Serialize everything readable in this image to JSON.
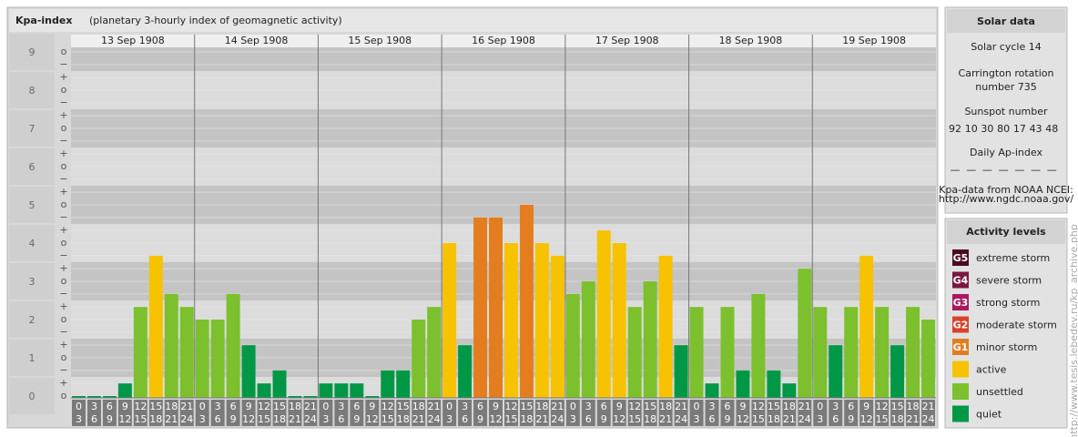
{
  "chart_data": {
    "type": "bar",
    "title": "Kpa-index",
    "subtitle": "(planetary 3-hourly index of geomagnetic activity)",
    "categories": [
      "13 Sep 1908",
      "14 Sep 1908",
      "15 Sep 1908",
      "16 Sep 1908",
      "17 Sep 1908",
      "18 Sep 1908",
      "19 Sep 1908"
    ],
    "hours_start": [
      "0",
      "3",
      "6",
      "9",
      "12",
      "15",
      "18",
      "21"
    ],
    "hours_end": [
      "3",
      "6",
      "9",
      "12",
      "15",
      "18",
      "21",
      "24"
    ],
    "values": [
      [
        0,
        0,
        0,
        0.33,
        2.33,
        3.67,
        2.67,
        2.33
      ],
      [
        2,
        2,
        2.67,
        1.33,
        0.33,
        0.67,
        0,
        0
      ],
      [
        0.33,
        0.33,
        0.33,
        0,
        0.67,
        0.67,
        2,
        2.33
      ],
      [
        4,
        1.33,
        4.67,
        4.67,
        4,
        5,
        4,
        3.67
      ],
      [
        2.67,
        3,
        4.33,
        4,
        2.33,
        3,
        3.67,
        1.33
      ],
      [
        2.33,
        0.33,
        2.33,
        0.67,
        2.67,
        0.67,
        0.33,
        3.33
      ],
      [
        2.33,
        1.33,
        2.33,
        3.67,
        2.33,
        1.33,
        2.33,
        2
      ]
    ],
    "levels": [
      [
        7,
        7,
        7,
        7,
        6,
        5,
        6,
        6
      ],
      [
        6,
        6,
        6,
        7,
        7,
        7,
        7,
        7
      ],
      [
        7,
        7,
        7,
        7,
        7,
        7,
        6,
        6
      ],
      [
        5,
        7,
        4,
        4,
        5,
        4,
        5,
        5
      ],
      [
        6,
        6,
        5,
        5,
        6,
        6,
        5,
        7
      ],
      [
        6,
        7,
        6,
        7,
        6,
        7,
        7,
        6
      ],
      [
        6,
        7,
        6,
        5,
        6,
        7,
        6,
        6
      ]
    ],
    "ylim": [
      0,
      9.12
    ],
    "yticks": [
      0,
      1,
      2,
      3,
      4,
      5,
      6,
      7,
      8,
      9
    ],
    "minor_ticks": [
      {
        "value": 9,
        "label": "o"
      },
      {
        "value": 8.67,
        "label": "−"
      },
      {
        "value": 8.33,
        "label": "+"
      },
      {
        "value": 8,
        "label": "o"
      },
      {
        "value": 7.67,
        "label": "−"
      },
      {
        "value": 7.33,
        "label": "+"
      },
      {
        "value": 7,
        "label": "o"
      },
      {
        "value": 6.67,
        "label": "−"
      },
      {
        "value": 6.33,
        "label": "+"
      },
      {
        "value": 6,
        "label": "o"
      },
      {
        "value": 5.67,
        "label": "−"
      },
      {
        "value": 5.33,
        "label": "+"
      },
      {
        "value": 5,
        "label": "o"
      },
      {
        "value": 4.67,
        "label": "−"
      },
      {
        "value": 4.33,
        "label": "+"
      },
      {
        "value": 4,
        "label": "o"
      },
      {
        "value": 3.67,
        "label": "−"
      },
      {
        "value": 3.33,
        "label": "+"
      },
      {
        "value": 3,
        "label": "o"
      },
      {
        "value": 2.67,
        "label": "−"
      },
      {
        "value": 2.33,
        "label": "+"
      },
      {
        "value": 2,
        "label": "o"
      },
      {
        "value": 1.67,
        "label": "−"
      },
      {
        "value": 1.33,
        "label": "+"
      },
      {
        "value": 1,
        "label": "o"
      },
      {
        "value": 0.67,
        "label": "−"
      },
      {
        "value": 0.33,
        "label": "+"
      },
      {
        "value": 0,
        "label": "o"
      }
    ],
    "legend_title": "Activity levels",
    "legend": [
      {
        "badge": "G5",
        "name": "extreme storm",
        "color": "#4b0a24"
      },
      {
        "badge": "G4",
        "name": "severe storm",
        "color": "#7a1840"
      },
      {
        "badge": "G3",
        "name": "strong storm",
        "color": "#a8195e"
      },
      {
        "badge": "G2",
        "name": "moderate storm",
        "color": "#d8432b"
      },
      {
        "badge": "G1",
        "name": "minor storm",
        "color": "#e47d1e"
      },
      {
        "badge": null,
        "name": "active",
        "color": "#f7c200"
      },
      {
        "badge": null,
        "name": "unsettled",
        "color": "#7cc02e"
      },
      {
        "badge": null,
        "name": "quiet",
        "color": "#009846"
      }
    ]
  },
  "solar_data": {
    "title": "Solar data",
    "cycle": "Solar cycle 14",
    "carrington": [
      "Carrington rotation",
      "number 735"
    ],
    "sunspot_title": "Sunspot number",
    "sunspots": [
      92,
      10,
      30,
      80,
      17,
      43,
      48
    ],
    "ap_title": "Daily Ap-index",
    "ap": [
      "—",
      "—",
      "—",
      "—",
      "—",
      "—",
      "—"
    ],
    "source": [
      "Kpa-data from NOAA NCEI:",
      "http://www.ngdc.noaa.gov/"
    ]
  },
  "side_url": "http://www.tesis.lebedev.ru/kp_archive.php"
}
